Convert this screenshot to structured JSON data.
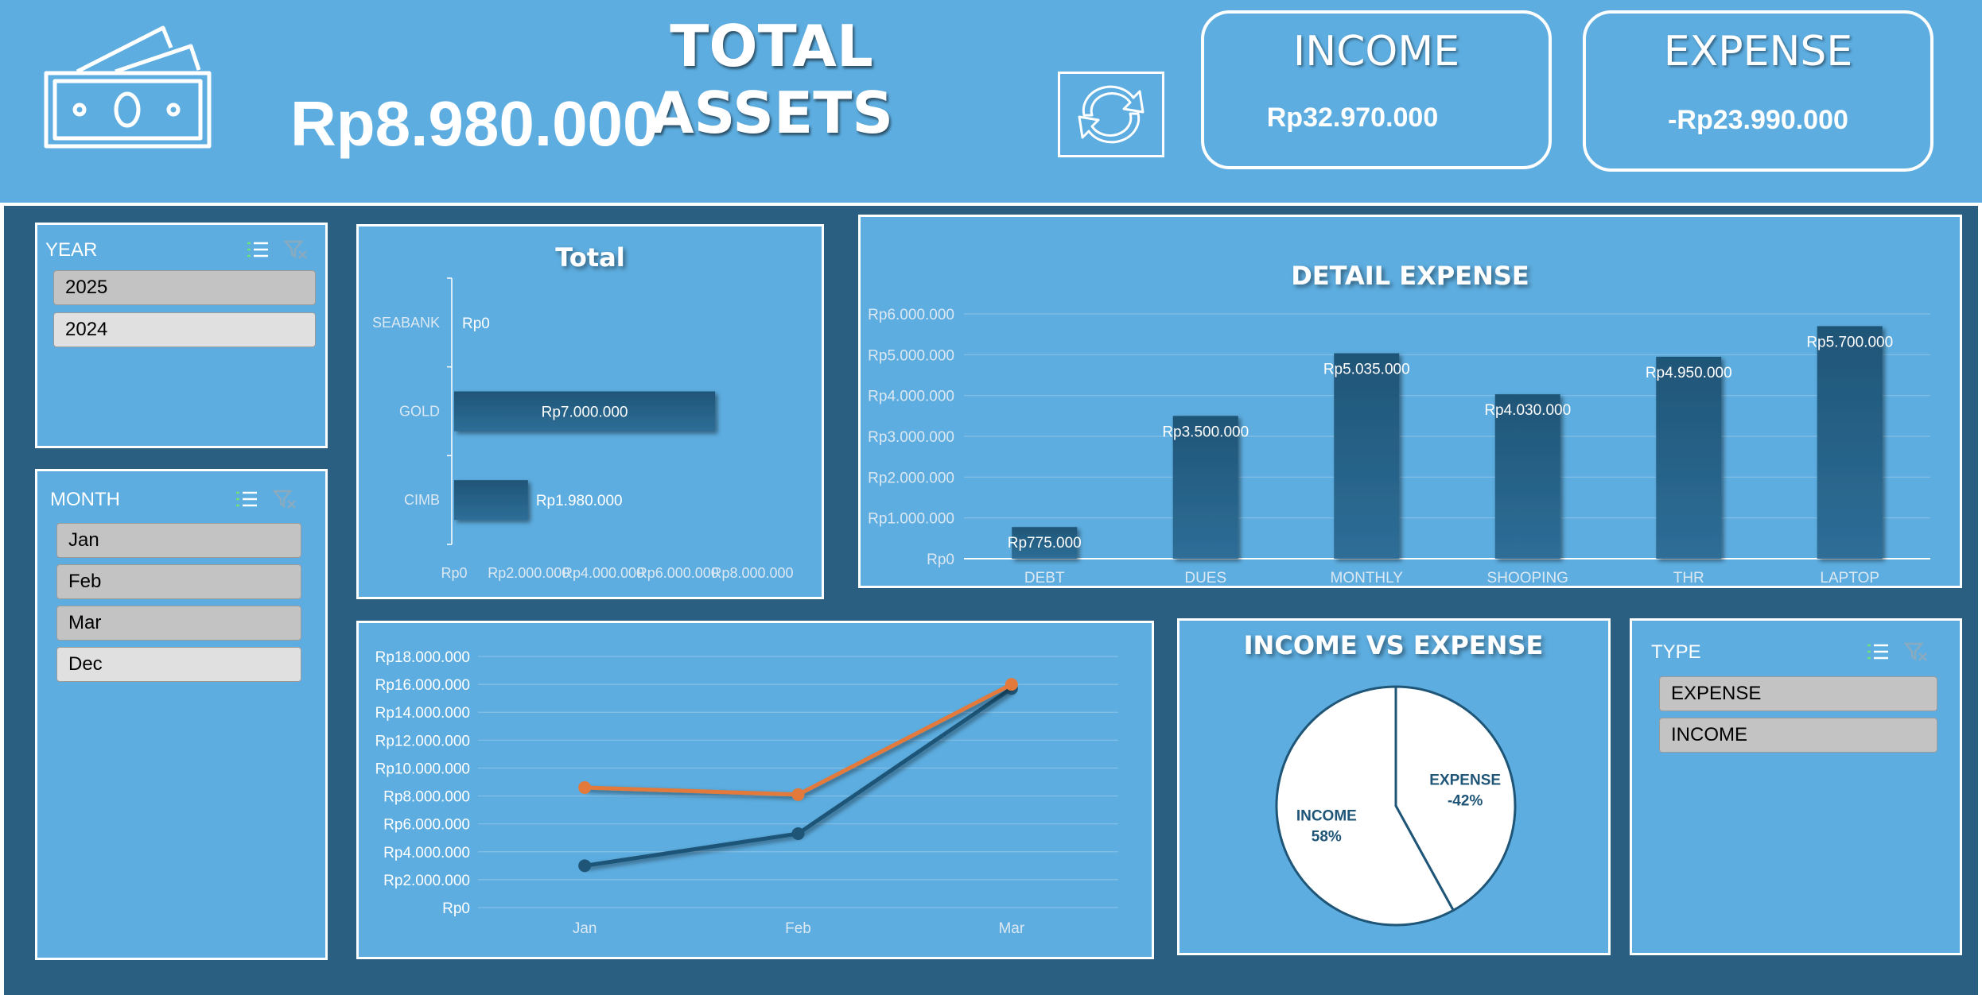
{
  "header": {
    "title": "TOTAL ASSETS",
    "total_value": "Rp8.980.000",
    "income": {
      "label": "INCOME",
      "value": "Rp32.970.000"
    },
    "expense": {
      "label": "EXPENSE",
      "value": "-Rp23.990.000"
    }
  },
  "slicers": {
    "year": {
      "label": "YEAR",
      "items": [
        "2025",
        "2024"
      ]
    },
    "month": {
      "label": "MONTH",
      "items": [
        "Jan",
        "Feb",
        "Mar",
        "Dec"
      ]
    },
    "type": {
      "label": "TYPE",
      "items": [
        "EXPENSE",
        "INCOME"
      ]
    }
  },
  "chart_data": [
    {
      "type": "bar",
      "orientation": "horizontal",
      "title": "Total",
      "categories": [
        "SEABANK",
        "GOLD",
        "CIMB"
      ],
      "values": [
        0,
        7000000,
        1980000
      ],
      "data_labels": [
        "Rp0",
        "Rp7.000.000",
        "Rp1.980.000"
      ],
      "x_ticks": [
        "Rp0",
        "Rp2.000.000",
        "Rp4.000.000",
        "Rp6.000.000",
        "Rp8.000.000"
      ],
      "xlim": [
        0,
        8000000
      ]
    },
    {
      "type": "bar",
      "title": "DETAIL EXPENSE",
      "categories": [
        "DEBT",
        "DUES",
        "MONTHLY",
        "SHOOPING",
        "THR",
        "LAPTOP"
      ],
      "values": [
        775000,
        3500000,
        5035000,
        4030000,
        4950000,
        5700000
      ],
      "data_labels": [
        "Rp775.000",
        "Rp3.500.000",
        "Rp5.035.000",
        "Rp4.030.000",
        "Rp4.950.000",
        "Rp5.700.000"
      ],
      "y_ticks": [
        "Rp0",
        "Rp1.000.000",
        "Rp2.000.000",
        "Rp3.000.000",
        "Rp4.000.000",
        "Rp5.000.000",
        "Rp6.000.000"
      ],
      "ylim": [
        0,
        6000000
      ],
      "grid": true
    },
    {
      "type": "line",
      "categories": [
        "Jan",
        "Feb",
        "Mar"
      ],
      "series": [
        {
          "color": "#e37a3b",
          "values": [
            8600000,
            8100000,
            16000000
          ]
        },
        {
          "color": "#1f5577",
          "values": [
            3000000,
            5300000,
            15700000
          ]
        }
      ],
      "y_ticks": [
        "Rp0",
        "Rp2.000.000",
        "Rp4.000.000",
        "Rp6.000.000",
        "Rp8.000.000",
        "Rp10.000.000",
        "Rp12.000.000",
        "Rp14.000.000",
        "Rp16.000.000",
        "Rp18.000.000"
      ],
      "ylim": [
        0,
        18000000
      ],
      "grid": true
    },
    {
      "type": "pie",
      "title": "INCOME VS EXPENSE",
      "slices": [
        {
          "label": "EXPENSE",
          "pct_label": "-42%",
          "value": 42
        },
        {
          "label": "INCOME",
          "pct_label": "58%",
          "value": 58
        }
      ]
    }
  ],
  "colors": {
    "header_bg": "#5dade0",
    "dashboard_bg": "#2a5f82",
    "bar_fill": "#2a5f82",
    "pie_fill": "#ffffff",
    "pie_stroke": "#1f5577"
  },
  "icons": {
    "money": "money-bills-icon",
    "refresh": "refresh-icon",
    "multiselect": "multi-select-icon",
    "clear_filter": "clear-filter-icon"
  }
}
